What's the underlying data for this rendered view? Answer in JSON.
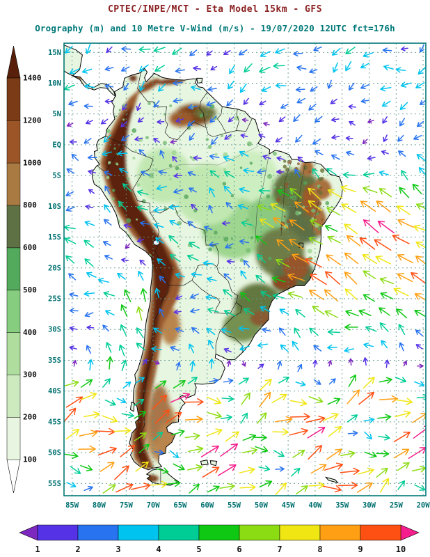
{
  "header": {
    "line1": "CPTEC/INPE/MCT -  Eta Model 15km - GFS",
    "line2": "Orography (m) and 10 Metre V-Wind (m/s) - 19/07/2020 12UTC fct=176h"
  },
  "colors": {
    "title1": "#8b2121",
    "title2": "#007878",
    "frame": "#007878",
    "grid": "#5b968c",
    "tick_label": "#007070",
    "legend_label": "#111111",
    "ocean": "#ffffff",
    "land_base": "#e7f6e0",
    "coastline": "#000000",
    "border": "#1a1a1a"
  },
  "chart_data": {
    "type": "heatmap",
    "subtype": "orography_shading_with_wind_vector_overlay",
    "region": "South America",
    "title": "Orography (m) and 10 Metre V-Wind (m/s)",
    "model_line": "CPTEC/INPE/MCT - Eta Model 15km - GFS",
    "valid": "19/07/2020 12UTC",
    "forecast_hour": "fct=176h",
    "x_axis": {
      "ticks": [
        "85W",
        "80W",
        "75W",
        "70W",
        "65W",
        "60W",
        "55W",
        "50W",
        "45W",
        "40W",
        "35W",
        "30W",
        "25W",
        "20W"
      ]
    },
    "y_axis": {
      "ticks": [
        "15N",
        "10N",
        "5N",
        "EQ",
        "5S",
        "10S",
        "15S",
        "20S",
        "25S",
        "30S",
        "35S",
        "40S",
        "45S",
        "50S",
        "55S"
      ]
    },
    "lon_range": [
      -86.5,
      -19.5
    ],
    "lat_range": [
      -57,
      16.5
    ],
    "grid_step_deg": 5,
    "grid_lines": "dashed",
    "orography_legend": {
      "units": "m",
      "tick_labels": [
        "100",
        "200",
        "300",
        "400",
        "500",
        "600",
        "800",
        "1000",
        "1200",
        "1400"
      ],
      "colors_bottom_to_top": [
        "#ffffff",
        "#e8f6e1",
        "#cdeabf",
        "#aedd9e",
        "#86cd80",
        "#53a95c",
        "#5d7144",
        "#a97a41",
        "#9c5526",
        "#7a3b16",
        "#581f0a"
      ]
    },
    "wind_legend": {
      "units": "m/s",
      "tick_labels": [
        "1",
        "2",
        "3",
        "4",
        "5",
        "6",
        "7",
        "8",
        "9",
        "10"
      ],
      "colors_left_to_right": [
        "#7d28be",
        "#5532e6",
        "#2873f0",
        "#00c3f0",
        "#00cd96",
        "#0fc814",
        "#8cdc14",
        "#f0e614",
        "#ffa014",
        "#ff5014",
        "#f51e8c"
      ]
    },
    "wind_vectors_note": "arrows on ~2.5 deg grid, colored by speed; strong (pink/red) south of 35S and in SE-trade Atlantic, weak (purple/blue) near equator",
    "annotations": [
      {
        "label": "station-square-marker",
        "lon": -42.6,
        "lat": -16.3
      }
    ]
  }
}
